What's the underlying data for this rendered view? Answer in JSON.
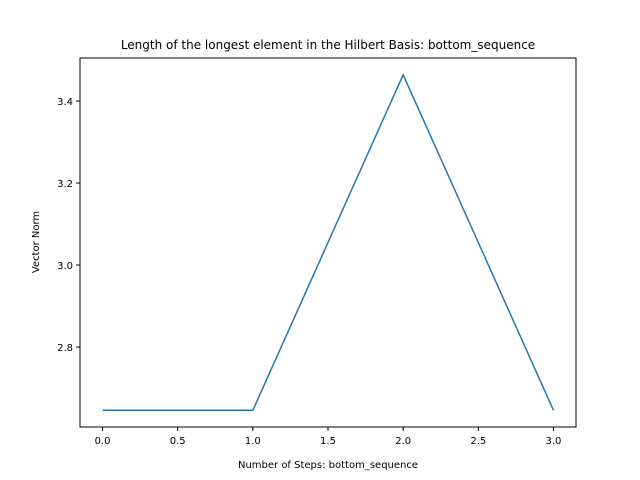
{
  "chart_data": {
    "type": "line",
    "title": "Length of the longest element in the Hilbert Basis: bottom_sequence",
    "xlabel": "Number of Steps: bottom_sequence",
    "ylabel": "Vector Norm",
    "x": [
      0,
      1,
      2,
      3
    ],
    "series": [
      {
        "values": [
          2.6458,
          2.6458,
          3.4641,
          2.6458
        ],
        "color": "#1f77b4"
      }
    ],
    "xlim": [
      -0.15,
      3.15
    ],
    "ylim": [
      2.605,
      3.505
    ],
    "xticks": [
      0.0,
      0.5,
      1.0,
      1.5,
      2.0,
      2.5,
      3.0
    ],
    "xtick_labels": [
      "0.0",
      "0.5",
      "1.0",
      "1.5",
      "2.0",
      "2.5",
      "3.0"
    ],
    "yticks": [
      2.8,
      3.0,
      3.2,
      3.4
    ],
    "ytick_labels": [
      "2.8",
      "3.0",
      "3.2",
      "3.4"
    ],
    "grid": false,
    "legend": "none"
  }
}
